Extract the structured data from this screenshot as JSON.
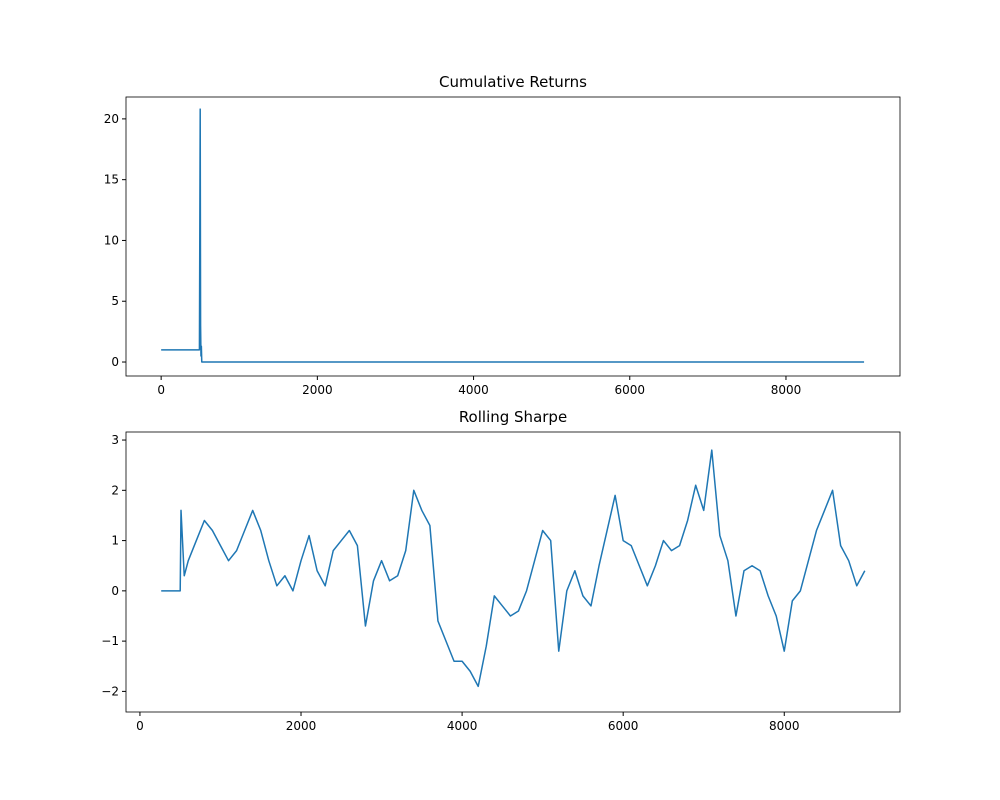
{
  "chart_data": [
    {
      "type": "line",
      "title": "Cumulative Returns",
      "color": "#1f77b4",
      "grid": false,
      "x": [
        0,
        490,
        500,
        505,
        510,
        515,
        520,
        530,
        9000
      ],
      "values": [
        1,
        1,
        20.8,
        3,
        0.5,
        1.3,
        0,
        0,
        0
      ],
      "xlim": [
        -450,
        9460
      ],
      "ylim": [
        -1.15,
        21.8
      ],
      "xticks": [
        0,
        2000,
        4000,
        6000,
        8000
      ],
      "yticks": [
        0,
        5,
        10,
        15,
        20
      ]
    },
    {
      "type": "line",
      "title": "Rolling Sharpe",
      "color": "#1f77b4",
      "grid": false,
      "x": [
        264,
        500,
        510,
        550,
        600,
        700,
        800,
        900,
        1000,
        1100,
        1200,
        1300,
        1400,
        1500,
        1600,
        1700,
        1800,
        1900,
        2000,
        2100,
        2200,
        2300,
        2400,
        2500,
        2600,
        2700,
        2800,
        2900,
        3000,
        3100,
        3200,
        3300,
        3400,
        3500,
        3600,
        3700,
        3800,
        3900,
        4000,
        4100,
        4200,
        4300,
        4400,
        4500,
        4600,
        4700,
        4800,
        4900,
        5000,
        5100,
        5200,
        5300,
        5400,
        5500,
        5600,
        5700,
        5800,
        5900,
        6000,
        6100,
        6200,
        6300,
        6400,
        6500,
        6600,
        6700,
        6800,
        6900,
        7000,
        7100,
        7200,
        7300,
        7400,
        7500,
        7600,
        7700,
        7800,
        7900,
        8000,
        8100,
        8200,
        8300,
        8400,
        8500,
        8600,
        8700,
        8800,
        8900,
        9000
      ],
      "values": [
        0,
        0,
        1.6,
        0.3,
        0.6,
        1.0,
        1.4,
        1.2,
        0.9,
        0.6,
        0.8,
        1.2,
        1.6,
        1.2,
        0.6,
        0.1,
        0.3,
        0.0,
        0.6,
        1.1,
        0.4,
        0.1,
        0.8,
        1.0,
        1.2,
        0.9,
        -0.7,
        0.2,
        0.6,
        0.2,
        0.3,
        0.8,
        2.0,
        1.6,
        1.3,
        -0.6,
        -1.0,
        -1.4,
        -1.4,
        -1.6,
        -1.9,
        -1.1,
        -0.1,
        -0.3,
        -0.5,
        -0.4,
        0.0,
        0.6,
        1.2,
        1.0,
        -1.2,
        0.0,
        0.4,
        -0.1,
        -0.3,
        0.5,
        1.2,
        1.9,
        1.0,
        0.9,
        0.5,
        0.1,
        0.5,
        1.0,
        0.8,
        0.9,
        1.4,
        2.1,
        1.6,
        2.8,
        1.1,
        0.6,
        -0.5,
        0.4,
        0.5,
        0.4,
        -0.1,
        -0.5,
        -1.2,
        -0.2,
        0.0,
        0.6,
        1.2,
        1.6,
        2.0,
        0.9,
        0.6,
        0.1,
        0.4
      ],
      "xlim": [
        -173,
        9437
      ],
      "ylim": [
        -2.41,
        3.16
      ],
      "xticks": [
        0,
        2000,
        4000,
        6000,
        8000
      ],
      "yticks": [
        {
          "value": -2,
          "label": "−2"
        },
        {
          "value": -1,
          "label": "−1"
        },
        0,
        1,
        2,
        3
      ]
    }
  ]
}
